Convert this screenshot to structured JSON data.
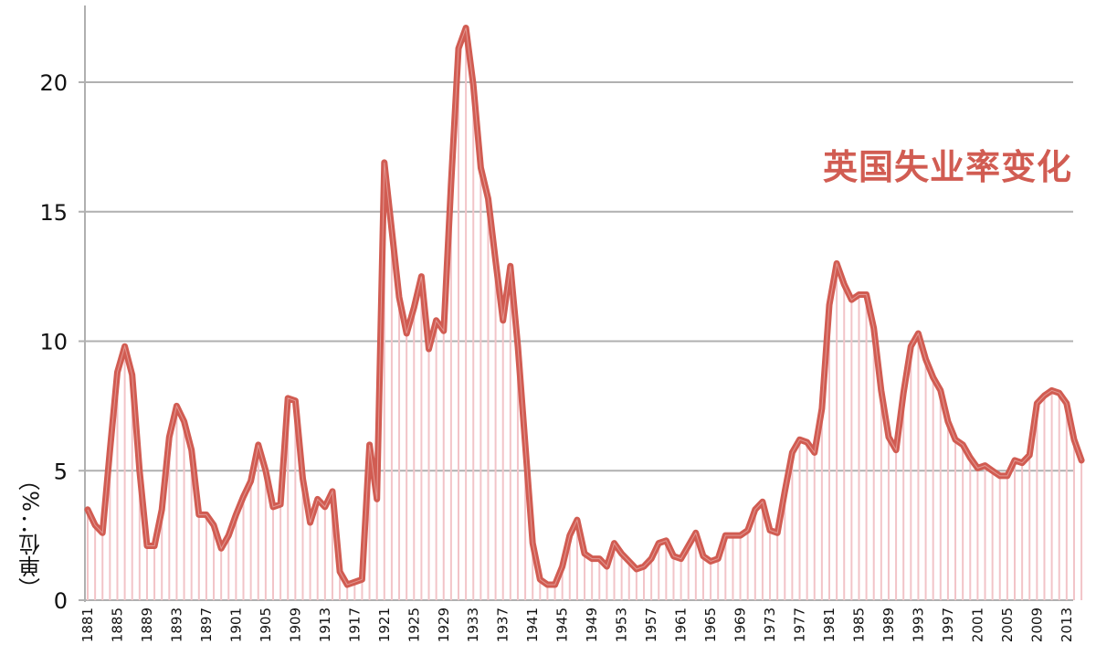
{
  "chart_data": {
    "type": "line",
    "title": "英国失业率变化",
    "xlabel": "",
    "ylabel": "（单位：%）",
    "ylim": [
      0,
      23
    ],
    "yticks": [
      0,
      5,
      10,
      15,
      20
    ],
    "grid": "horizontal",
    "legend": "none",
    "colors": {
      "line": "#d15c52",
      "stems": "#f2c4c8",
      "grid": "#b0b0b0",
      "title": "#d15c52"
    },
    "xtick_labels": [
      "1881",
      "1885",
      "1889",
      "1893",
      "1897",
      "1901",
      "1905",
      "1909",
      "1913",
      "1917",
      "1921",
      "1925",
      "1929",
      "1933",
      "1937",
      "1941",
      "1945",
      "1949",
      "1953",
      "1957",
      "1961",
      "1965",
      "1969",
      "1973",
      "1977",
      "1981",
      "1985",
      "1989",
      "1993",
      "1997",
      "2001",
      "2005",
      "2009",
      "2013"
    ],
    "x_start": 1881,
    "series": [
      {
        "name": "英国失业率",
        "values": [
          3.5,
          2.9,
          2.6,
          5.8,
          8.8,
          9.8,
          8.7,
          5.0,
          2.1,
          2.1,
          3.5,
          6.3,
          7.5,
          6.9,
          5.8,
          3.3,
          3.3,
          2.9,
          2.0,
          2.5,
          3.3,
          4.0,
          4.6,
          6.0,
          5.0,
          3.6,
          3.7,
          7.8,
          7.7,
          4.7,
          3.0,
          3.9,
          3.6,
          4.2,
          1.1,
          0.6,
          0.7,
          0.8,
          6.0,
          3.9,
          16.9,
          14.3,
          11.7,
          10.3,
          11.3,
          12.5,
          9.7,
          10.8,
          10.4,
          16.1,
          21.3,
          22.1,
          19.9,
          16.7,
          15.5,
          13.1,
          10.8,
          12.9,
          9.8,
          6.0,
          2.2,
          0.8,
          0.6,
          0.6,
          1.3,
          2.5,
          3.1,
          1.8,
          1.6,
          1.6,
          1.3,
          2.2,
          1.8,
          1.5,
          1.2,
          1.3,
          1.6,
          2.2,
          2.3,
          1.7,
          1.6,
          2.1,
          2.6,
          1.7,
          1.5,
          1.6,
          2.5,
          2.5,
          2.5,
          2.7,
          3.5,
          3.8,
          2.7,
          2.6,
          4.2,
          5.7,
          6.2,
          6.1,
          5.7,
          7.4,
          11.4,
          13.0,
          12.2,
          11.6,
          11.8,
          11.8,
          10.5,
          8.1,
          6.3,
          5.8,
          8.0,
          9.8,
          10.3,
          9.3,
          8.6,
          8.1,
          6.9,
          6.2,
          6.0,
          5.5,
          5.1,
          5.2,
          5.0,
          4.8,
          4.8,
          5.4,
          5.3,
          5.6,
          7.6,
          7.9,
          8.1,
          8.0,
          7.6,
          6.2,
          5.4
        ]
      }
    ]
  }
}
